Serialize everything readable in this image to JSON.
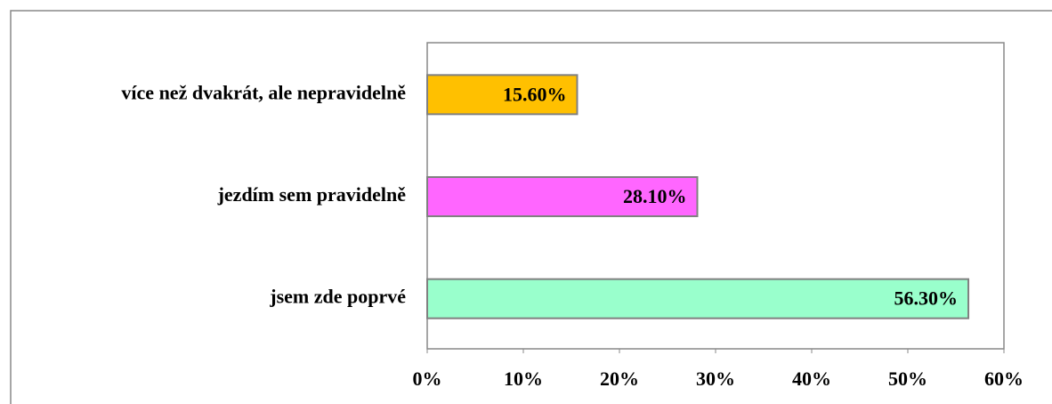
{
  "chart_data": {
    "type": "barh",
    "categories": [
      "více než dvakrát, ale nepravidelně",
      "jezdím sem pravidelně",
      "jsem zde poprvé"
    ],
    "values": [
      15.6,
      28.1,
      56.3
    ],
    "value_labels": [
      "15.60%",
      "28.10%",
      "56.30%"
    ],
    "colors": [
      "#ffc000",
      "#ff66ff",
      "#99ffcc"
    ],
    "xlim": [
      0,
      60
    ],
    "xticks": [
      {
        "value": 0,
        "label": "0%"
      },
      {
        "value": 10,
        "label": "10%"
      },
      {
        "value": 20,
        "label": "20%"
      },
      {
        "value": 30,
        "label": "30%"
      },
      {
        "value": 40,
        "label": "40%"
      },
      {
        "value": 50,
        "label": "50%"
      },
      {
        "value": 60,
        "label": "60%"
      }
    ],
    "grid": false
  }
}
